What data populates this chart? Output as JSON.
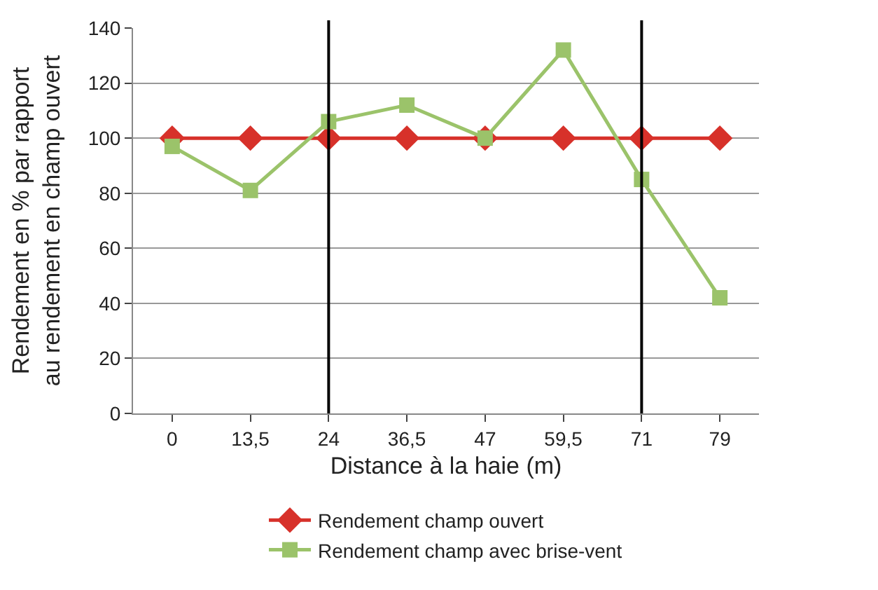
{
  "chart_data": {
    "type": "line",
    "xlabel": "Distance à la haie (m)",
    "ylabel": "Rendement en % par rapport\nau rendement en champ ouvert",
    "categories": [
      "0",
      "13,5",
      "24",
      "36,5",
      "47",
      "59,5",
      "71",
      "79"
    ],
    "series": [
      {
        "name": "Rendement champ ouvert",
        "color": "#d7312a",
        "marker": "diamond",
        "values": [
          100,
          100,
          100,
          100,
          100,
          100,
          100,
          100
        ]
      },
      {
        "name": "Rendement champ avec brise-vent",
        "color": "#9bc36a",
        "marker": "square",
        "values": [
          97,
          81,
          106,
          112,
          100,
          132,
          85,
          42
        ]
      }
    ],
    "ylim": [
      0,
      140
    ],
    "yticks": [
      0,
      20,
      40,
      60,
      80,
      100,
      120,
      140
    ],
    "grid": "y",
    "legend": "bottom",
    "ref_lines": [
      {
        "axis": "x",
        "value": "24",
        "color": "#000000"
      },
      {
        "axis": "x",
        "value": "71",
        "color": "#000000"
      }
    ]
  }
}
